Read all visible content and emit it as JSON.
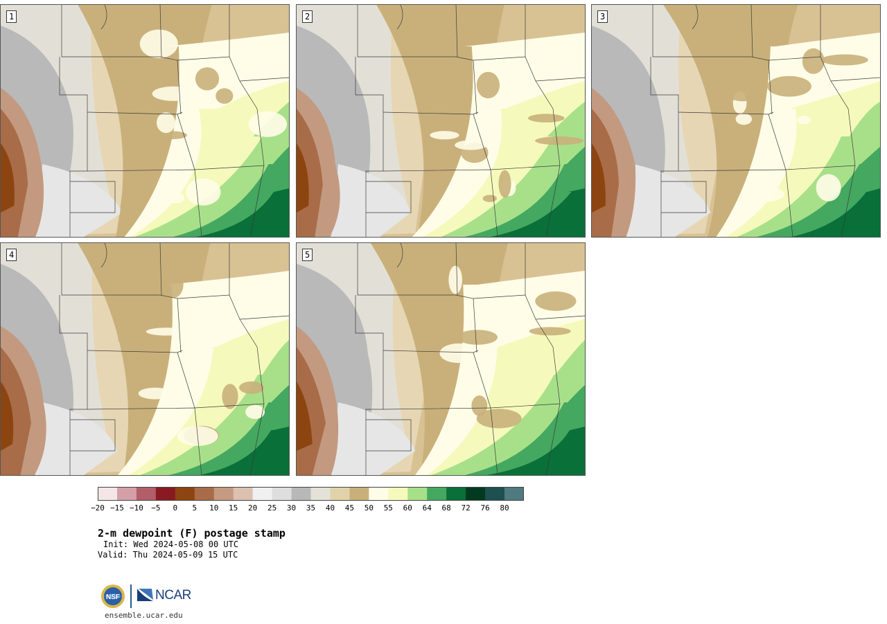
{
  "panels": [
    {
      "label": "1",
      "seed": 11
    },
    {
      "label": "2",
      "seed": 23
    },
    {
      "label": "3",
      "seed": 37
    },
    {
      "label": "4",
      "seed": 41
    },
    {
      "label": "5",
      "seed": 59
    }
  ],
  "colorbar": {
    "colors": [
      "#f4e6e8",
      "#d4a0a8",
      "#b05f68",
      "#8a1a22",
      "#8c4510",
      "#a86c48",
      "#c49a80",
      "#dcc0b0",
      "#f0f0f0",
      "#dedede",
      "#b8b8b8",
      "#e4e2d8",
      "#e2d2aa",
      "#c9b07a",
      "#fffde8",
      "#f5fabc",
      "#a8e08a",
      "#44a860",
      "#087038",
      "#023a20",
      "#1e5050",
      "#4f7a80"
    ],
    "tick_labels": [
      "−20",
      "−15",
      "−10",
      "−5",
      "0",
      "5",
      "10",
      "15",
      "20",
      "25",
      "30",
      "35",
      "40",
      "45",
      "50",
      "55",
      "60",
      "64",
      "68",
      "72",
      "76",
      "80"
    ]
  },
  "title": "2-m dewpoint (F) postage stamp",
  "init": "Init: Wed 2024-05-08 00 UTC",
  "valid": "Valid: Thu 2024-05-09 15 UTC",
  "logos": {
    "nsf": "NSF",
    "ncar": "NCAR"
  },
  "site": "ensemble.ucar.edu"
}
